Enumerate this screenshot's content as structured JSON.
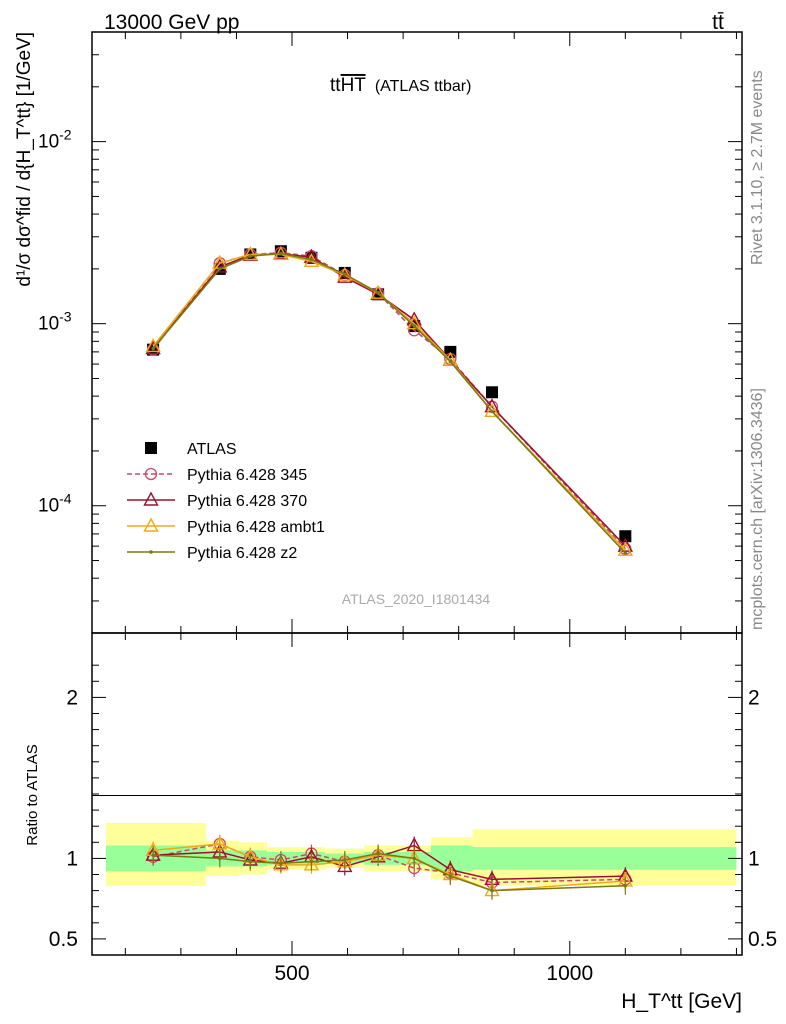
{
  "header": {
    "energy_label": "13000 GeV pp",
    "process_label": "tt̄"
  },
  "side_labels": {
    "rivet": "Rivet 3.1.10, ≥ 2.7M events",
    "mcplots": "mcplots.cern.ch [arXiv:1306.3436]"
  },
  "chart_data": [
    {
      "panel": "main",
      "type": "line",
      "title_main": "tt",
      "title_over": "HT",
      "title_sub": "(ATLAS ttbar)",
      "ylabel": "d¹/σ dσ^fid / d{H_T^tt} [1/GeV]",
      "yscale": "log",
      "ylim": [
        2e-05,
        0.04
      ],
      "xlim": [
        140,
        1310
      ],
      "yticks": [
        {
          "v": 0.0001,
          "label": "10^{-4}"
        },
        {
          "v": 0.001,
          "label": "10^{-3}"
        },
        {
          "v": 0.01,
          "label": "10^{-2}"
        }
      ],
      "watermark": "ATLAS_2020_I1801434",
      "x": [
        250,
        370,
        425,
        480,
        535,
        595,
        655,
        720,
        785,
        860,
        1100
      ],
      "series": [
        {
          "name": "ATLAS",
          "color": "#000000",
          "marker": "square",
          "values": [
            0.00072,
            0.002,
            0.0024,
            0.0025,
            0.0023,
            0.0019,
            0.00145,
            0.00097,
            0.0007,
            0.00042,
            6.8e-05
          ]
        },
        {
          "name": "Pythia 6.428 345",
          "color": "#c84a6a",
          "marker": "circle",
          "dash": true,
          "values": [
            0.00072,
            0.00215,
            0.0024,
            0.00245,
            0.00235,
            0.00185,
            0.00147,
            0.00092,
            0.00064,
            0.00035,
            5.8e-05
          ]
        },
        {
          "name": "Pythia 6.428 370",
          "color": "#9b1030",
          "marker": "triangle",
          "values": [
            0.00073,
            0.00205,
            0.00238,
            0.00242,
            0.00232,
            0.0018,
            0.00145,
            0.00105,
            0.00063,
            0.00035,
            6e-05
          ]
        },
        {
          "name": "Pythia 6.428 ambt1",
          "color": "#f0a818",
          "marker": "triangle",
          "values": [
            0.00075,
            0.00215,
            0.0024,
            0.0024,
            0.0022,
            0.00185,
            0.00147,
            0.001,
            0.00063,
            0.00033,
            5.7e-05
          ]
        },
        {
          "name": "Pythia 6.428 z2",
          "color": "#7a7a10",
          "marker": "dot",
          "values": [
            0.00073,
            0.002,
            0.00235,
            0.00243,
            0.00225,
            0.00187,
            0.00148,
            0.00097,
            0.00062,
            0.00033,
            5.5e-05
          ]
        }
      ]
    },
    {
      "panel": "ratio",
      "type": "line",
      "ylabel": "Ratio to ATLAS",
      "xlabel": "H_T^tt [GeV]",
      "ylim": [
        0.4,
        2.4
      ],
      "yticks": [
        {
          "v": 0.5,
          "label": "0.5"
        },
        {
          "v": 1,
          "label": "1"
        },
        {
          "v": 2,
          "label": "2"
        }
      ],
      "xticks": [
        {
          "v": 500,
          "label": "500"
        },
        {
          "v": 1000,
          "label": "1000"
        }
      ],
      "bands": [
        {
          "x0": 165,
          "x1": 345,
          "inner": [
            0.92,
            1.08
          ],
          "outer": [
            0.83,
            1.22
          ]
        },
        {
          "x0": 345,
          "x1": 405,
          "inner": [
            0.95,
            1.05
          ],
          "outer": [
            0.89,
            1.11
          ]
        },
        {
          "x0": 405,
          "x1": 455,
          "inner": [
            0.95,
            1.05
          ],
          "outer": [
            0.9,
            1.1
          ]
        },
        {
          "x0": 455,
          "x1": 560,
          "inner": [
            0.96,
            1.04
          ],
          "outer": [
            0.93,
            1.07
          ]
        },
        {
          "x0": 560,
          "x1": 630,
          "inner": [
            0.97,
            1.03
          ],
          "outer": [
            0.94,
            1.06
          ]
        },
        {
          "x0": 630,
          "x1": 750,
          "inner": [
            0.96,
            1.04
          ],
          "outer": [
            0.92,
            1.08
          ]
        },
        {
          "x0": 750,
          "x1": 825,
          "inner": [
            0.92,
            1.08
          ],
          "outer": [
            0.87,
            1.13
          ]
        },
        {
          "x0": 825,
          "x1": 1300,
          "inner": [
            0.93,
            1.07
          ],
          "outer": [
            0.83,
            1.18
          ]
        }
      ],
      "x": [
        250,
        370,
        425,
        480,
        535,
        595,
        655,
        720,
        785,
        860,
        1100
      ],
      "series": [
        {
          "name": "Pythia 6.428 345",
          "values": [
            1.01,
            1.09,
            1.01,
            0.99,
            1.03,
            0.98,
            1.02,
            0.94,
            0.91,
            0.85,
            0.87
          ]
        },
        {
          "name": "Pythia 6.428 370",
          "values": [
            1.02,
            1.04,
            0.99,
            0.97,
            1.01,
            0.95,
            1.01,
            1.08,
            0.93,
            0.87,
            0.89
          ]
        },
        {
          "name": "Pythia 6.428 ambt1",
          "values": [
            1.05,
            1.09,
            1.01,
            0.96,
            0.96,
            0.98,
            1.02,
            1.0,
            0.9,
            0.8,
            0.86
          ]
        },
        {
          "name": "Pythia 6.428 z2",
          "values": [
            1.02,
            1.0,
            0.98,
            0.97,
            0.98,
            0.99,
            1.03,
            1.0,
            0.89,
            0.8,
            0.83
          ]
        }
      ]
    }
  ]
}
